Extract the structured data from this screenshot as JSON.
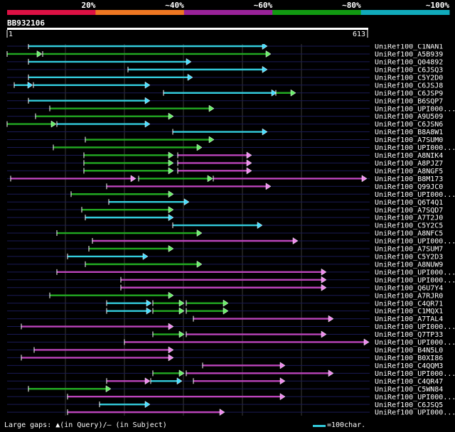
{
  "header": {
    "scale_labels": [
      "20%",
      "~40%",
      "~60%",
      "~80%",
      "~100%"
    ],
    "scale_colors": [
      "#dd1144",
      "#ee7722",
      "#992299",
      "#119911",
      "#11aabb"
    ],
    "query_id": "BB932106",
    "range_start": "1",
    "range_end": "613"
  },
  "colors": {
    "cyan": "#33ccdd",
    "green": "#22aa22",
    "magenta": "#bb44bb",
    "arrow_green": "#66ee66",
    "arrow_cyan": "#44ddff",
    "arrow_magenta": "#ee88ee"
  },
  "hits": [
    {
      "name": "UniRef100_C1NAN1",
      "segs": [
        [
          40,
          375,
          "c"
        ]
      ]
    },
    {
      "name": "UniRef100_A5B939",
      "segs": [
        [
          10,
          58,
          "g"
        ],
        [
          60,
          380,
          "g"
        ]
      ]
    },
    {
      "name": "UniRef100_Q04892",
      "segs": [
        [
          40,
          268,
          "c"
        ]
      ]
    },
    {
      "name": "UniRef100_C6JSQ3",
      "segs": [
        [
          180,
          375,
          "c"
        ]
      ]
    },
    {
      "name": "UniRef100_C5Y2D0",
      "segs": [
        [
          40,
          270,
          "c"
        ]
      ]
    },
    {
      "name": "UniRef100_C6JSJ8",
      "segs": [
        [
          20,
          45,
          "c"
        ],
        [
          47,
          210,
          "c"
        ]
      ]
    },
    {
      "name": "UniRef100_C6JSP9",
      "segs": [
        [
          230,
          388,
          "c"
        ],
        [
          388,
          415,
          "g"
        ]
      ]
    },
    {
      "name": "UniRef100_B6SQP7",
      "segs": [
        [
          40,
          210,
          "c"
        ]
      ]
    },
    {
      "name": "UniRef100_UPI000...",
      "segs": [
        [
          70,
          300,
          "g"
        ]
      ]
    },
    {
      "name": "UniRef100_A9U509",
      "segs": [
        [
          50,
          243,
          "g"
        ]
      ]
    },
    {
      "name": "UniRef100_C6JSN6",
      "segs": [
        [
          10,
          78,
          "g"
        ],
        [
          80,
          210,
          "c"
        ]
      ]
    },
    {
      "name": "UniRef100_B8A8W1",
      "segs": [
        [
          243,
          375,
          "c"
        ]
      ]
    },
    {
      "name": "UniRef100_A7SUM0",
      "segs": [
        [
          120,
          300,
          "g"
        ]
      ]
    },
    {
      "name": "UniRef100_UPI000...",
      "segs": [
        [
          75,
          283,
          "g"
        ]
      ]
    },
    {
      "name": "UniRef100_A8NIK4",
      "segs": [
        [
          118,
          243,
          "g"
        ],
        [
          250,
          353,
          "m"
        ]
      ]
    },
    {
      "name": "UniRef100_A8PJZ7",
      "segs": [
        [
          118,
          243,
          "g"
        ],
        [
          250,
          353,
          "m"
        ]
      ]
    },
    {
      "name": "UniRef100_A8NGF5",
      "segs": [
        [
          118,
          243,
          "g"
        ],
        [
          250,
          353,
          "m"
        ]
      ]
    },
    {
      "name": "UniRef100_B8M173",
      "segs": [
        [
          15,
          190,
          "m"
        ],
        [
          195,
          298,
          "g"
        ],
        [
          300,
          515,
          "m"
        ]
      ]
    },
    {
      "name": "UniRef100_Q99JC0",
      "segs": [
        [
          150,
          380,
          "m"
        ]
      ]
    },
    {
      "name": "UniRef100_UPI000...",
      "segs": [
        [
          100,
          243,
          "g"
        ]
      ]
    },
    {
      "name": "UniRef100_Q6T4Q1",
      "segs": [
        [
          153,
          265,
          "c"
        ]
      ]
    },
    {
      "name": "UniRef100_A7SQD7",
      "segs": [
        [
          115,
          243,
          "g"
        ]
      ]
    },
    {
      "name": "UniRef100_A7T2J0",
      "segs": [
        [
          120,
          243,
          "c"
        ]
      ]
    },
    {
      "name": "UniRef100_C5Y2C5",
      "segs": [
        [
          243,
          368,
          "c"
        ]
      ]
    },
    {
      "name": "UniRef100_A8NFC5",
      "segs": [
        [
          80,
          283,
          "g"
        ]
      ]
    },
    {
      "name": "UniRef100_UPI000...",
      "segs": [
        [
          130,
          418,
          "m"
        ]
      ]
    },
    {
      "name": "UniRef100_A7SUM7",
      "segs": [
        [
          125,
          243,
          "g"
        ]
      ]
    },
    {
      "name": "UniRef100_C5Y2D3",
      "segs": [
        [
          95,
          207,
          "c"
        ]
      ]
    },
    {
      "name": "UniRef100_A8NUW9",
      "segs": [
        [
          120,
          283,
          "g"
        ]
      ]
    },
    {
      "name": "UniRef100_UPI000...",
      "segs": [
        [
          80,
          458,
          "m"
        ]
      ]
    },
    {
      "name": "UniRef100_UPI000...",
      "segs": [
        [
          170,
          458,
          "m"
        ]
      ]
    },
    {
      "name": "UniRef100_Q6U7Y4",
      "segs": [
        [
          170,
          458,
          "m"
        ]
      ]
    },
    {
      "name": "UniRef100_A7RJR0",
      "segs": [
        [
          70,
          243,
          "g"
        ]
      ]
    },
    {
      "name": "UniRef100_C4QR71",
      "segs": [
        [
          150,
          212,
          "c"
        ],
        [
          215,
          258,
          "g"
        ],
        [
          262,
          320,
          "g"
        ]
      ]
    },
    {
      "name": "UniRef100_C1MQX1",
      "segs": [
        [
          150,
          212,
          "c"
        ],
        [
          215,
          258,
          "g"
        ],
        [
          262,
          320,
          "g"
        ]
      ]
    },
    {
      "name": "UniRef100_A7TAL4",
      "segs": [
        [
          272,
          468,
          "m"
        ]
      ]
    },
    {
      "name": "UniRef100_UPI000...",
      "segs": [
        [
          30,
          243,
          "m"
        ]
      ]
    },
    {
      "name": "UniRef100_Q7TP33",
      "segs": [
        [
          215,
          258,
          "g"
        ],
        [
          262,
          458,
          "m"
        ]
      ]
    },
    {
      "name": "UniRef100_UPI000...",
      "segs": [
        [
          175,
          518,
          "m"
        ]
      ]
    },
    {
      "name": "UniRef100_B4N5L0",
      "segs": [
        [
          48,
          243,
          "m"
        ]
      ]
    },
    {
      "name": "UniRef100_B0XI86",
      "segs": [
        [
          30,
          243,
          "m"
        ]
      ]
    },
    {
      "name": "UniRef100_C4QQM3",
      "segs": [
        [
          285,
          400,
          "m"
        ]
      ]
    },
    {
      "name": "UniRef100_UPI000...",
      "segs": [
        [
          215,
          258,
          "g"
        ],
        [
          262,
          468,
          "m"
        ]
      ]
    },
    {
      "name": "UniRef100_C4QR47",
      "segs": [
        [
          150,
          210,
          "m"
        ],
        [
          212,
          255,
          "c"
        ],
        [
          272,
          400,
          "m"
        ]
      ]
    },
    {
      "name": "UniRef100_C5WN84",
      "segs": [
        [
          40,
          155,
          "g"
        ]
      ]
    },
    {
      "name": "UniRef100_UPI000...",
      "segs": [
        [
          95,
          400,
          "m"
        ]
      ]
    },
    {
      "name": "UniRef100_C6JSQ5",
      "segs": [
        [
          140,
          210,
          "c"
        ]
      ]
    },
    {
      "name": "UniRef100_UPI000...",
      "segs": [
        [
          95,
          315,
          "m"
        ]
      ]
    }
  ],
  "legend": {
    "text": "Large gaps: ▲(in Query)/— (in Subject)",
    "scale_text": "=100char."
  }
}
